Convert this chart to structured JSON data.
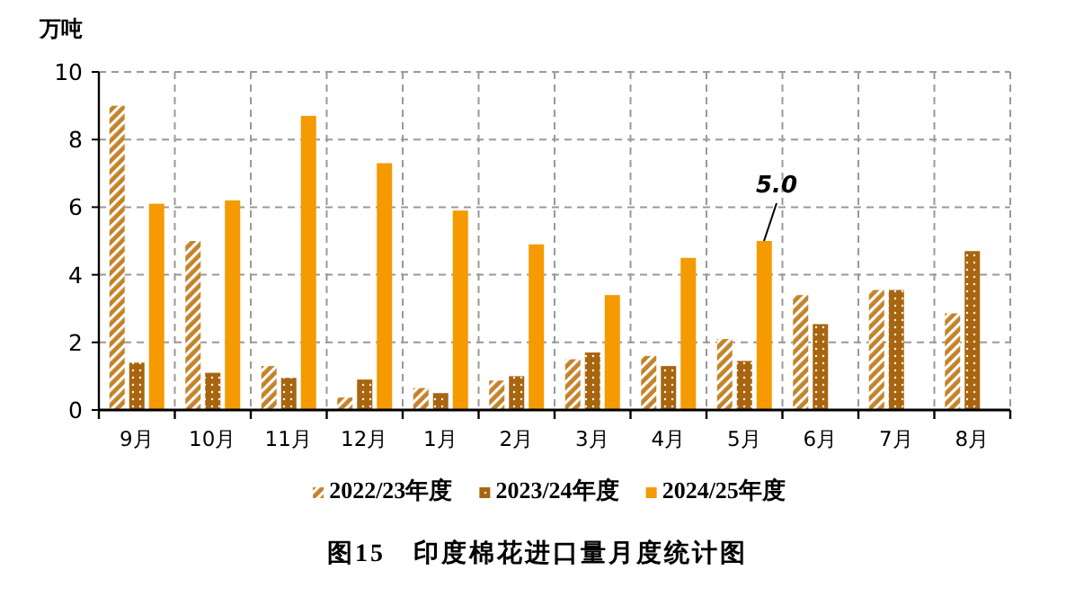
{
  "chart_data": {
    "type": "bar",
    "ylabel": "万吨",
    "title": "图15　印度棉花进口量月度统计图",
    "categories": [
      "9月",
      "10月",
      "11月",
      "12月",
      "1月",
      "2月",
      "3月",
      "4月",
      "5月",
      "6月",
      "7月",
      "8月"
    ],
    "series": [
      {
        "name": "2022/23年度",
        "color": "#c4832a",
        "values": [
          9.0,
          5.0,
          1.3,
          0.37,
          0.65,
          0.87,
          1.5,
          1.6,
          2.1,
          3.4,
          3.55,
          2.86
        ]
      },
      {
        "name": "2023/24年度",
        "color": "#a8650f",
        "values": [
          1.4,
          1.1,
          0.95,
          0.9,
          0.5,
          1.0,
          1.7,
          1.3,
          1.45,
          2.54,
          3.55,
          4.7
        ]
      },
      {
        "name": "2024/25年度",
        "color": "#f59a00",
        "values": [
          6.1,
          6.2,
          8.7,
          7.3,
          5.9,
          4.9,
          3.4,
          4.5,
          5.0,
          null,
          null,
          null
        ]
      }
    ],
    "ylim": [
      0,
      10
    ],
    "yticks": [
      0,
      2,
      4,
      6,
      8,
      10
    ],
    "grid": true,
    "legend": "bottom",
    "annotations": [
      "5.0"
    ]
  }
}
